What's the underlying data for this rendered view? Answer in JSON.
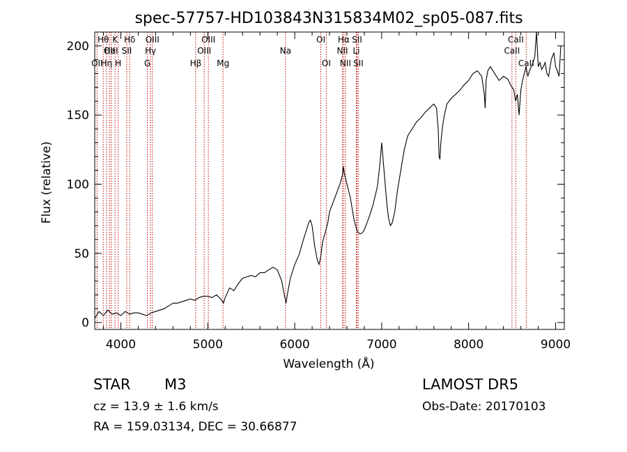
{
  "chart_data": {
    "type": "line",
    "title": "spec-57757-HD103843N315834M02_sp05-087.fits",
    "xlabel": "Wavelength (Å)",
    "ylabel": "Flux (relative)",
    "xlim": [
      3700,
      9100
    ],
    "ylim": [
      -5,
      210
    ],
    "xticks": [
      4000,
      5000,
      6000,
      7000,
      8000,
      9000
    ],
    "yticks": [
      0,
      50,
      100,
      150,
      200
    ],
    "grid": false,
    "series": [
      {
        "x": [
          3700,
          3750,
          3800,
          3850,
          3900,
          3950,
          4000,
          4050,
          4100,
          4150,
          4200,
          4250,
          4300,
          4350,
          4400,
          4450,
          4500,
          4550,
          4600,
          4650,
          4700,
          4750,
          4800,
          4850,
          4900,
          4950,
          5000,
          5050,
          5100,
          5150,
          5180,
          5200,
          5250,
          5300,
          5350,
          5400,
          5450,
          5500,
          5550,
          5600,
          5650,
          5700,
          5750,
          5800,
          5850,
          5880,
          5900,
          5920,
          5950,
          6000,
          6050,
          6100,
          6130,
          6160,
          6180,
          6200,
          6230,
          6260,
          6280,
          6300,
          6320,
          6350,
          6380,
          6400,
          6430,
          6460,
          6490,
          6520,
          6550,
          6560,
          6570,
          6600,
          6640,
          6680,
          6700,
          6720,
          6750,
          6780,
          6800,
          6830,
          6860,
          6900,
          6950,
          6980,
          7000,
          7020,
          7040,
          7060,
          7080,
          7100,
          7120,
          7150,
          7180,
          7220,
          7260,
          7300,
          7350,
          7400,
          7450,
          7500,
          7550,
          7600,
          7630,
          7650,
          7660,
          7670,
          7680,
          7700,
          7720,
          7750,
          7800,
          7850,
          7900,
          7950,
          8000,
          8050,
          8100,
          8150,
          8180,
          8190,
          8200,
          8220,
          8250,
          8300,
          8350,
          8400,
          8450,
          8480,
          8500,
          8520,
          8540,
          8560,
          8580,
          8600,
          8620,
          8640,
          8660,
          8680,
          8700,
          8720,
          8740,
          8760,
          8780,
          8800,
          8820,
          8840,
          8860,
          8880,
          8900,
          8920,
          8950,
          8980,
          9000,
          9020,
          9040,
          9060
        ],
        "y": [
          3,
          8,
          5,
          9,
          6,
          7,
          5,
          8,
          6,
          7,
          7,
          6,
          5,
          7,
          8,
          9,
          10,
          12,
          14,
          14,
          15,
          16,
          17,
          16,
          18,
          19,
          19,
          18,
          20,
          17,
          14,
          18,
          25,
          23,
          28,
          32,
          33,
          34,
          33,
          36,
          36,
          38,
          40,
          38,
          30,
          20,
          14,
          22,
          32,
          42,
          49,
          60,
          66,
          72,
          74,
          70,
          55,
          45,
          42,
          48,
          58,
          65,
          72,
          80,
          85,
          90,
          95,
          100,
          107,
          113,
          108,
          100,
          90,
          75,
          70,
          66,
          64,
          65,
          67,
          72,
          77,
          85,
          98,
          115,
          130,
          115,
          100,
          85,
          75,
          70,
          72,
          80,
          95,
          110,
          125,
          135,
          140,
          145,
          148,
          152,
          155,
          158,
          155,
          140,
          120,
          118,
          130,
          142,
          150,
          158,
          162,
          165,
          168,
          172,
          175,
          180,
          182,
          178,
          165,
          155,
          175,
          182,
          185,
          180,
          175,
          178,
          176,
          172,
          170,
          168,
          160,
          165,
          150,
          168,
          175,
          180,
          185,
          178,
          182,
          185,
          188,
          192,
          210,
          185,
          188,
          183,
          185,
          188,
          180,
          178,
          190,
          195,
          185,
          182,
          178,
          200
        ]
      }
    ],
    "lines": [
      {
        "wave": 3727,
        "label": "OII",
        "row": 2
      },
      {
        "wave": 3798,
        "label": "Hθ",
        "row": 0
      },
      {
        "wave": 3835,
        "label": "Hη",
        "row": 2
      },
      {
        "wave": 3869,
        "label": "OII",
        "row": 1
      },
      {
        "wave": 3889,
        "label": "HeI",
        "row": 1
      },
      {
        "wave": 3934,
        "label": "K",
        "row": 0
      },
      {
        "wave": 3970,
        "label": "H",
        "row": 2
      },
      {
        "wave": 4068,
        "label": "SII",
        "row": 1
      },
      {
        "wave": 4102,
        "label": "Hδ",
        "row": 0
      },
      {
        "wave": 4305,
        "label": "G",
        "row": 2
      },
      {
        "wave": 4341,
        "label": "Hγ",
        "row": 1
      },
      {
        "wave": 4363,
        "label": "OIII",
        "row": 0
      },
      {
        "wave": 4861,
        "label": "Hβ",
        "row": 2
      },
      {
        "wave": 4959,
        "label": "OIII",
        "row": 1
      },
      {
        "wave": 5007,
        "label": "OIII",
        "row": 0
      },
      {
        "wave": 5175,
        "label": "Mg",
        "row": 2
      },
      {
        "wave": 5894,
        "label": "Na",
        "row": 1
      },
      {
        "wave": 6300,
        "label": "OI",
        "row": 0
      },
      {
        "wave": 6363,
        "label": "OI",
        "row": 2
      },
      {
        "wave": 6548,
        "label": "NII",
        "row": 1
      },
      {
        "wave": 6563,
        "label": "Hα",
        "row": 0
      },
      {
        "wave": 6583,
        "label": "NII",
        "row": 2
      },
      {
        "wave": 6708,
        "label": "Li",
        "row": 1
      },
      {
        "wave": 6716,
        "label": "SII",
        "row": 0
      },
      {
        "wave": 6731,
        "label": "SII",
        "row": 2
      },
      {
        "wave": 8498,
        "label": "CaII",
        "row": 1
      },
      {
        "wave": 8542,
        "label": "CaII",
        "row": 0
      },
      {
        "wave": 8662,
        "label": "CaII",
        "row": 2
      }
    ]
  },
  "info": {
    "class": "STAR",
    "subclass": "M3",
    "survey": "LAMOST  DR5",
    "cz": "cz = 13.9 ± 1.6 km/s",
    "obs_date": "Obs-Date: 20170103",
    "coords": "RA = 159.03134, DEC =  30.66877"
  }
}
